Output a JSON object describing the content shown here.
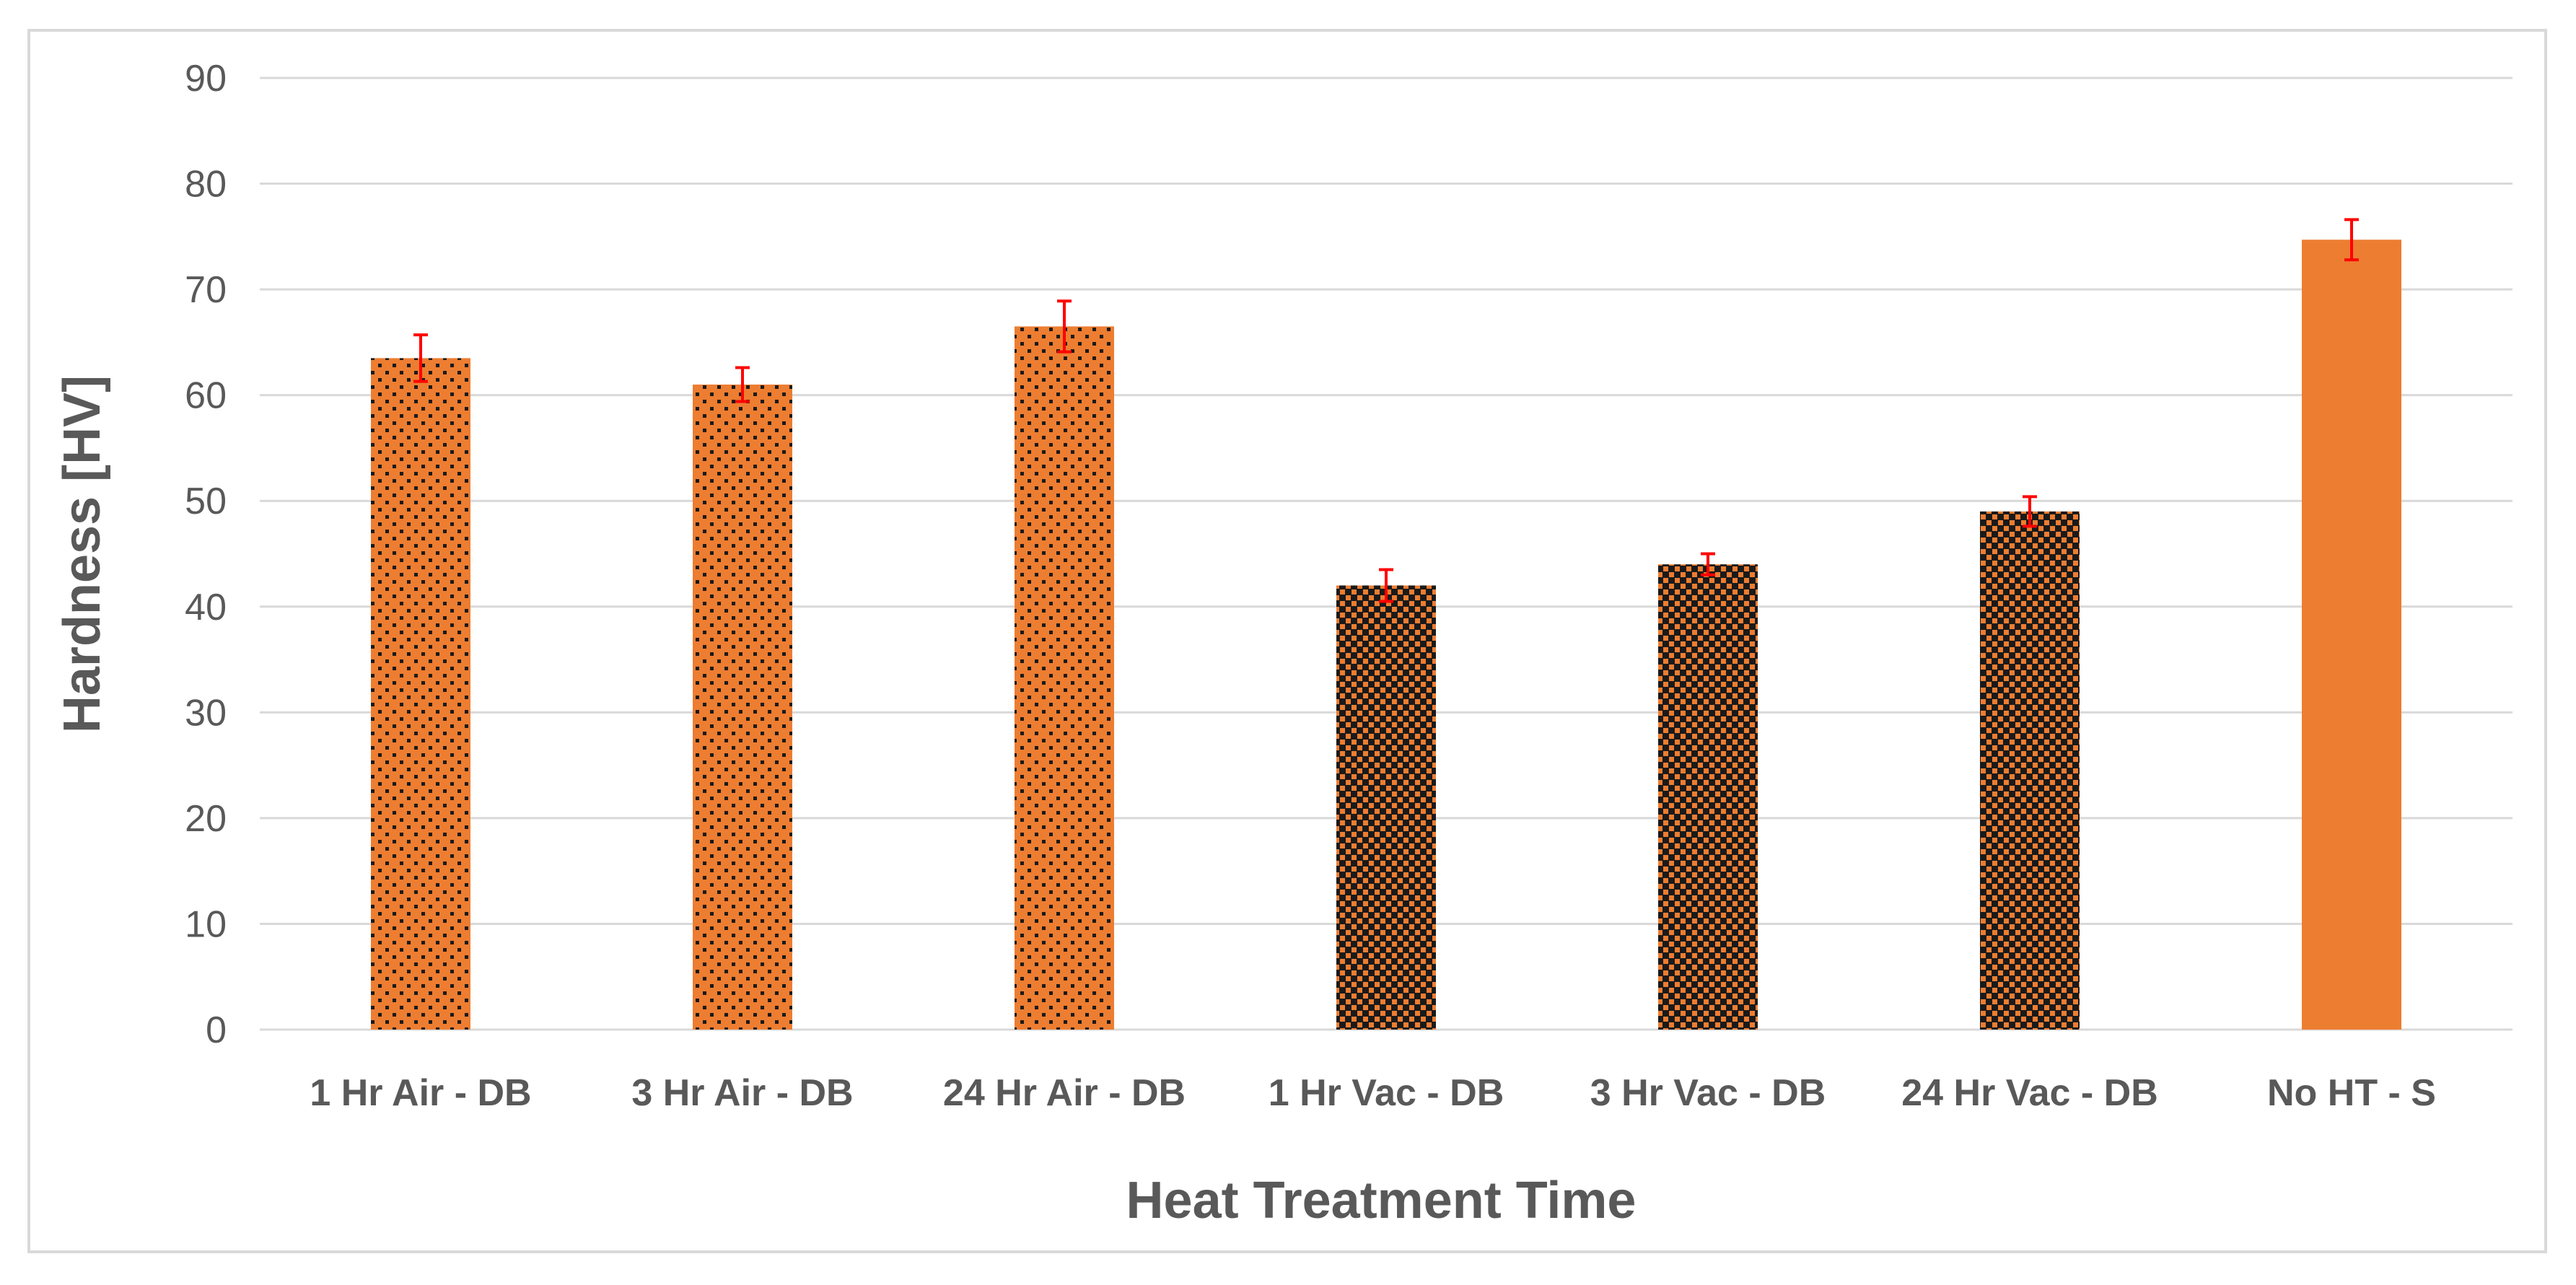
{
  "chart_data": {
    "type": "bar",
    "title": "",
    "xlabel": "Heat Treatment Time",
    "ylabel": "Hardness [HV]",
    "ylim": [
      0,
      90
    ],
    "yticks": [
      0,
      10,
      20,
      30,
      40,
      50,
      60,
      70,
      80,
      90
    ],
    "grid": true,
    "categories": [
      "1 Hr Air - DB",
      "3 Hr Air - DB",
      "24 Hr Air - DB",
      "1 Hr Vac - DB",
      "3 Hr Vac - DB",
      "24 Hr Vac - DB",
      "No HT - S"
    ],
    "values": [
      63.5,
      61,
      66.5,
      42,
      44,
      49,
      74.7
    ],
    "errors": [
      2.2,
      1.6,
      2.4,
      1.5,
      1.0,
      1.4,
      1.9
    ],
    "fill_patterns": [
      "dotted",
      "dotted",
      "dotted",
      "dense-dotted",
      "dense-dotted",
      "dense-dotted",
      "solid"
    ],
    "colors": {
      "bar": "#ed7d31",
      "error_bar": "#ff0000",
      "grid": "#d9d9d9",
      "text": "#595959",
      "pattern_dot": "#1a1a1a"
    }
  }
}
